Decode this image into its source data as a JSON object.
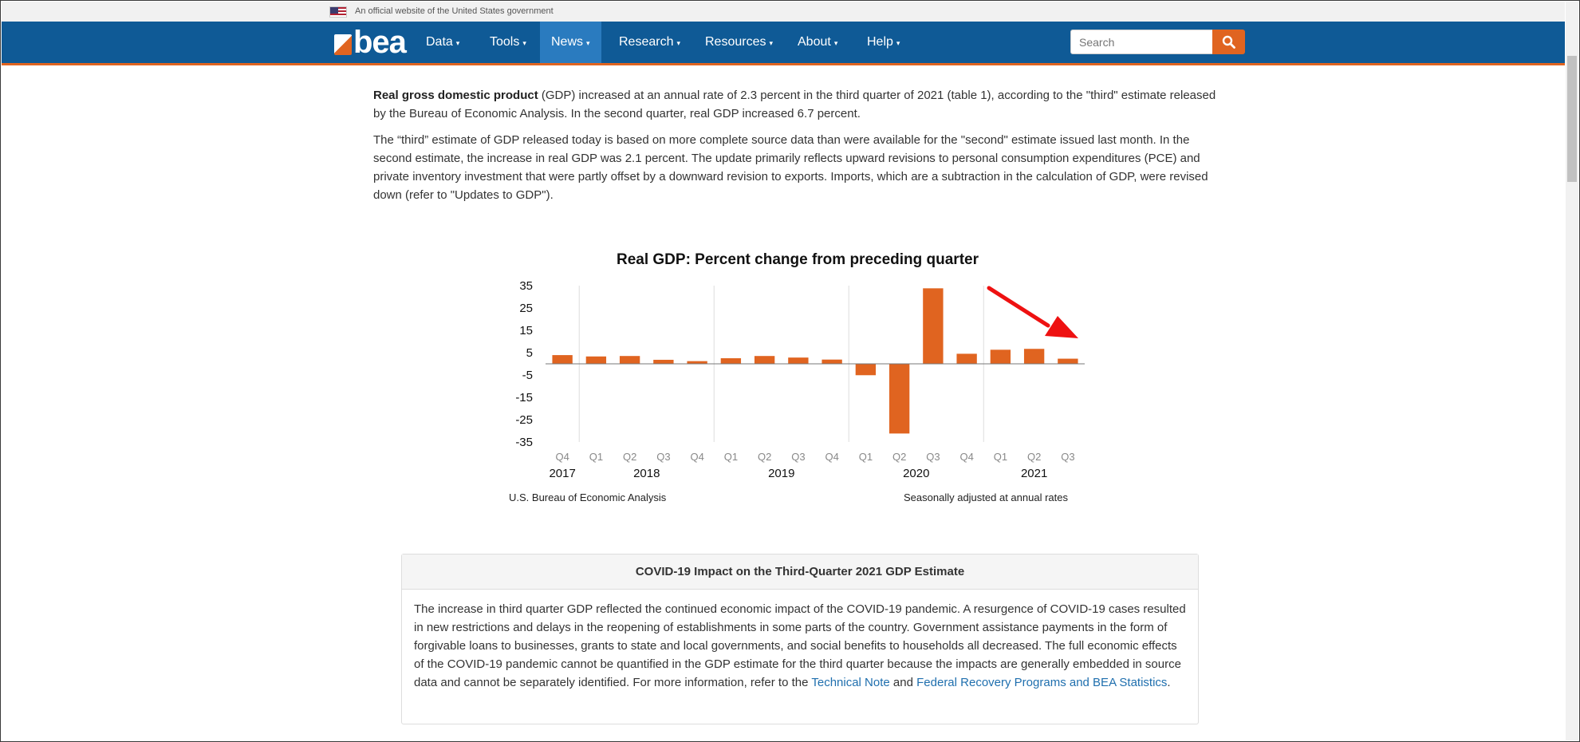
{
  "gov_banner": {
    "text": "An official website of the United States government",
    "icon": "us-flag-icon"
  },
  "nav": {
    "logo_text": "bea",
    "items": [
      {
        "label": "Data"
      },
      {
        "label": "Tools"
      },
      {
        "label": "News",
        "active": true
      },
      {
        "label": "Research"
      },
      {
        "label": "Resources"
      },
      {
        "label": "About"
      },
      {
        "label": "Help"
      }
    ],
    "caret": "▾",
    "search_placeholder": "Search",
    "search_icon": "search-icon"
  },
  "article": {
    "p1_bold": "Real gross domestic product",
    "p1_rest": " (GDP) increased at an annual rate of 2.3 percent in the third quarter of 2021 (table 1), according to the \"third\" estimate released by the Bureau of Economic Analysis. In the second quarter, real GDP increased 6.7 percent.",
    "p2": "The “third” estimate of GDP released today is based on more complete source data than were available for the \"second\" estimate issued last month. In the second estimate, the increase in real GDP was 2.1 percent. The update primarily reflects upward revisions to personal consumption expenditures (PCE) and private inventory investment that were partly offset by a downward revision to exports. Imports, which are a subtraction in the calculation of GDP, were revised down (refer to \"Updates to GDP\")."
  },
  "chart_data": {
    "type": "bar",
    "title": "Real GDP:  Percent change from preceding quarter",
    "categories": [
      "Q4",
      "Q1",
      "Q2",
      "Q3",
      "Q4",
      "Q1",
      "Q2",
      "Q3",
      "Q4",
      "Q1",
      "Q2",
      "Q3",
      "Q4",
      "Q1",
      "Q2",
      "Q3"
    ],
    "years": [
      {
        "label": "2017",
        "start": 0,
        "end": 0
      },
      {
        "label": "2018",
        "start": 1,
        "end": 4
      },
      {
        "label": "2019",
        "start": 5,
        "end": 8
      },
      {
        "label": "2020",
        "start": 9,
        "end": 12
      },
      {
        "label": "2021",
        "start": 13,
        "end": 15
      }
    ],
    "year_dividers_after": [
      0,
      4,
      8,
      12
    ],
    "values": [
      3.9,
      3.3,
      3.5,
      1.8,
      1.2,
      2.5,
      3.5,
      2.8,
      1.9,
      -5.1,
      -31.2,
      33.8,
      4.5,
      6.3,
      6.7,
      2.3
    ],
    "yticks": [
      35,
      25,
      15,
      5,
      -5,
      -15,
      -25,
      -35
    ],
    "ylim": [
      -35,
      35
    ],
    "bar_color": "#e06420",
    "arrow_color": "#ee1111",
    "source": "U.S. Bureau of Economic Analysis",
    "note": "Seasonally adjusted at annual rates"
  },
  "covid": {
    "title": "COVID-19 Impact on the Third-Quarter 2021 GDP Estimate",
    "body": "The increase in third quarter GDP reflected the continued economic impact of the COVID-19 pandemic. A resurgence of COVID-19 cases resulted in new restrictions and delays in the reopening of establishments in some parts of the country. Government assistance payments in the form of forgivable loans to businesses, grants to state and local governments, and social benefits to households all decreased. The full economic effects of the COVID-19 pandemic cannot be quantified in the GDP estimate for the third quarter because the impacts are generally embedded in source data and cannot be separately identified. For more information, refer to the ",
    "link1": "Technical Note",
    "mid": " and ",
    "link2": "Federal Recovery Programs and BEA Statistics",
    "end": "."
  }
}
